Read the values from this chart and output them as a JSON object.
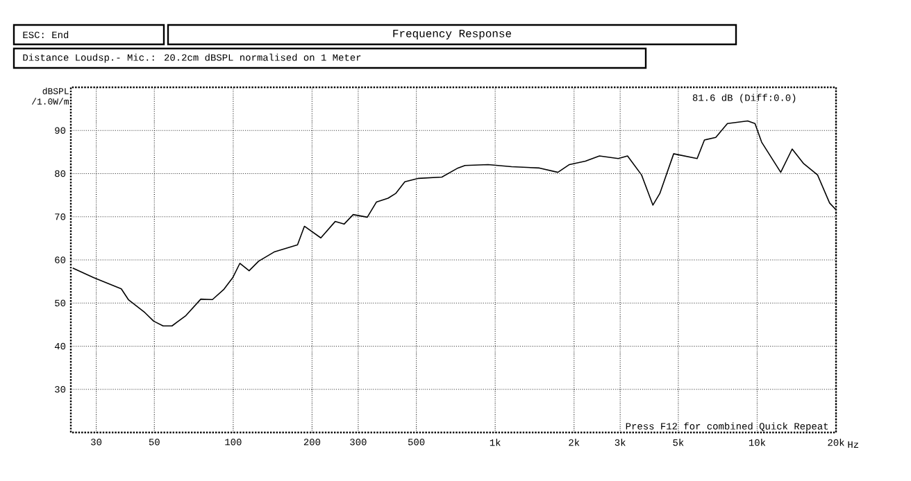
{
  "chart_data": {
    "type": "line",
    "title": "Frequency Response",
    "ylabel": "dBSPL /1.0W/m",
    "annotations": [
      "ESC: End",
      "Distance Loudsp.- Mic.: 20.2cm dBSPL normalised on 1 Meter",
      "81.6 dB (Diff:0.0)",
      "Press F12 for combined Quick Repeat"
    ],
    "log": "x",
    "grid": true,
    "marker": "none",
    "line_style": "solid",
    "xlim": [
      24,
      20000
    ],
    "ylim": [
      20,
      100
    ],
    "xticks": [
      30,
      50,
      100,
      200,
      300,
      500,
      {
        "value": 1000,
        "label": "1k"
      },
      {
        "value": 2000,
        "label": "2k"
      },
      {
        "value": 3000,
        "label": "3k"
      },
      {
        "value": 5000,
        "label": "5k"
      },
      {
        "value": 10000,
        "label": "10k"
      },
      {
        "value": 20000,
        "label": "20k"
      }
    ],
    "xlabel": "Hz",
    "yticks": [
      30,
      40,
      50,
      60,
      70,
      80,
      90
    ],
    "series": [
      {
        "color": "#000000",
        "x": [
          24.4,
          29.3,
          37.4,
          39.8,
          46,
          49.7,
          54,
          58.4,
          66,
          75.2,
          83.3,
          92.2,
          99.6,
          106,
          115,
          125,
          144,
          176,
          187,
          216,
          245,
          265,
          287,
          325,
          352,
          390,
          417,
          452,
          510,
          626,
          721,
          767,
          940,
          1155,
          1475,
          1735,
          1920,
          2210,
          2500,
          2950,
          3200,
          3620,
          4000,
          4250,
          4800,
          5900,
          6290,
          6950,
          7700,
          9200,
          9810,
          10400,
          12300,
          13600,
          15000,
          17000,
          18900,
          20000
        ],
        "values": [
          58.1,
          55.9,
          53.3,
          50.8,
          47.8,
          45.8,
          44.7,
          44.7,
          47.1,
          50.9,
          50.8,
          53.2,
          55.9,
          59.2,
          57.5,
          59.7,
          61.9,
          63.5,
          67.8,
          65.1,
          68.9,
          68.3,
          70.5,
          69.9,
          73.4,
          74.3,
          75.4,
          78.1,
          78.9,
          79.2,
          81.3,
          81.9,
          82.1,
          81.6,
          81.3,
          80.3,
          82.1,
          82.9,
          84.1,
          83.5,
          84.1,
          79.7,
          72.7,
          75.4,
          84.6,
          83.5,
          87.8,
          88.4,
          91.6,
          92.2,
          91.6,
          87.3,
          80.3,
          85.7,
          82.4,
          79.7,
          73.2,
          71.6
        ]
      }
    ]
  }
}
